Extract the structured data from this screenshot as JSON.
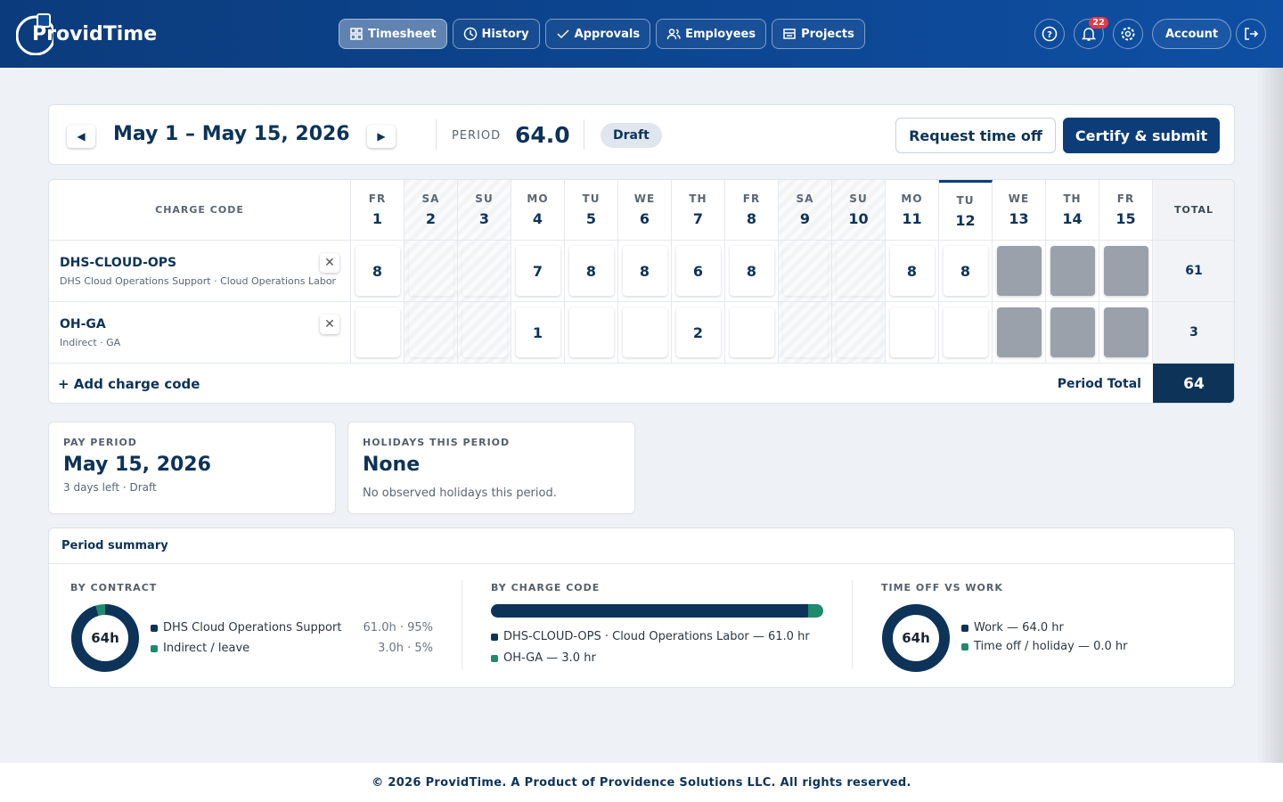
{
  "header": {
    "brand": "ProvidTime",
    "nav": [
      "Timesheet",
      "History",
      "Approvals",
      "Employees",
      "Projects"
    ],
    "active_nav": 0,
    "notification_count": 22,
    "account": "Account"
  },
  "period_bar": {
    "range": "May 1 – May 15, 2026",
    "period_label": "PERIOD",
    "period_hours": "64.0",
    "status": "Draft",
    "request_button": "Request time off",
    "submit_button": "Certify & submit"
  },
  "timesheet": {
    "charge_code_header": "CHARGE CODE",
    "total_header": "TOTAL",
    "days": [
      {
        "dow": "FR",
        "date": 1
      },
      {
        "dow": "SA",
        "date": 2,
        "weekend": true
      },
      {
        "dow": "SU",
        "date": 3,
        "weekend": true
      },
      {
        "dow": "MO",
        "date": 4
      },
      {
        "dow": "TU",
        "date": 5
      },
      {
        "dow": "WE",
        "date": 6
      },
      {
        "dow": "TH",
        "date": 7
      },
      {
        "dow": "FR",
        "date": 8
      },
      {
        "dow": "SA",
        "date": 9,
        "weekend": true
      },
      {
        "dow": "SU",
        "date": 10,
        "weekend": true
      },
      {
        "dow": "MO",
        "date": 11
      },
      {
        "dow": "TU",
        "date": 12,
        "today": true
      },
      {
        "dow": "WE",
        "date": 13,
        "future": true
      },
      {
        "dow": "TH",
        "date": 14,
        "future": true
      },
      {
        "dow": "FR",
        "date": 15,
        "future": true
      }
    ],
    "rows": [
      {
        "code": "DHS-CLOUD-OPS",
        "description": "DHS Cloud Operations Support · Cloud Operations Labor",
        "hours": [
          8,
          null,
          null,
          7,
          8,
          8,
          6,
          8,
          null,
          null,
          8,
          8,
          null,
          null,
          null
        ],
        "total": 61
      },
      {
        "code": "OH-GA",
        "description": "Indirect · GA",
        "hours": [
          null,
          null,
          null,
          1,
          null,
          null,
          2,
          null,
          null,
          null,
          null,
          null,
          null,
          null,
          null
        ],
        "total": 3
      }
    ],
    "add_charge_code": "+ Add charge code",
    "period_total_label": "Period Total",
    "period_total": 64
  },
  "cards": [
    {
      "label": "PAY PERIOD",
      "value": "May 15, 2026",
      "note": "3 days left · Draft"
    },
    {
      "label": "HOLIDAYS THIS PERIOD",
      "value": "None",
      "note": "No observed holidays this period."
    }
  ],
  "summary": {
    "title": "Period summary",
    "by_contract": {
      "label": "BY CONTRACT",
      "center": "64h",
      "items": [
        {
          "name": "DHS Cloud Operations Support",
          "value": 61,
          "value_label": "61.0h · 95%",
          "color": "#0d3358"
        },
        {
          "name": "Indirect / leave",
          "value": 3,
          "value_label": "3.0h · 5%",
          "color": "#1e8a6e"
        }
      ]
    },
    "by_charge_code": {
      "label": "BY CHARGE CODE",
      "items": [
        {
          "name": "DHS-CLOUD-OPS · Cloud Operations Labor — 61.0 hr",
          "value": 61,
          "color": "#0d3358"
        },
        {
          "name": "OH-GA — 3.0 hr",
          "value": 3,
          "color": "#1e8a6e"
        }
      ]
    },
    "time_off_vs_work": {
      "label": "TIME OFF VS WORK",
      "center": "64h",
      "items": [
        {
          "name": "Work — 64.0 hr",
          "value": 64,
          "color": "#0d3358"
        },
        {
          "name": "Time off / holiday — 0.0 hr",
          "value": 0,
          "color": "#1e8a6e"
        }
      ]
    }
  },
  "footer": "© 2026 ProvidTime. A Product of Providence Solutions LLC. All rights reserved."
}
